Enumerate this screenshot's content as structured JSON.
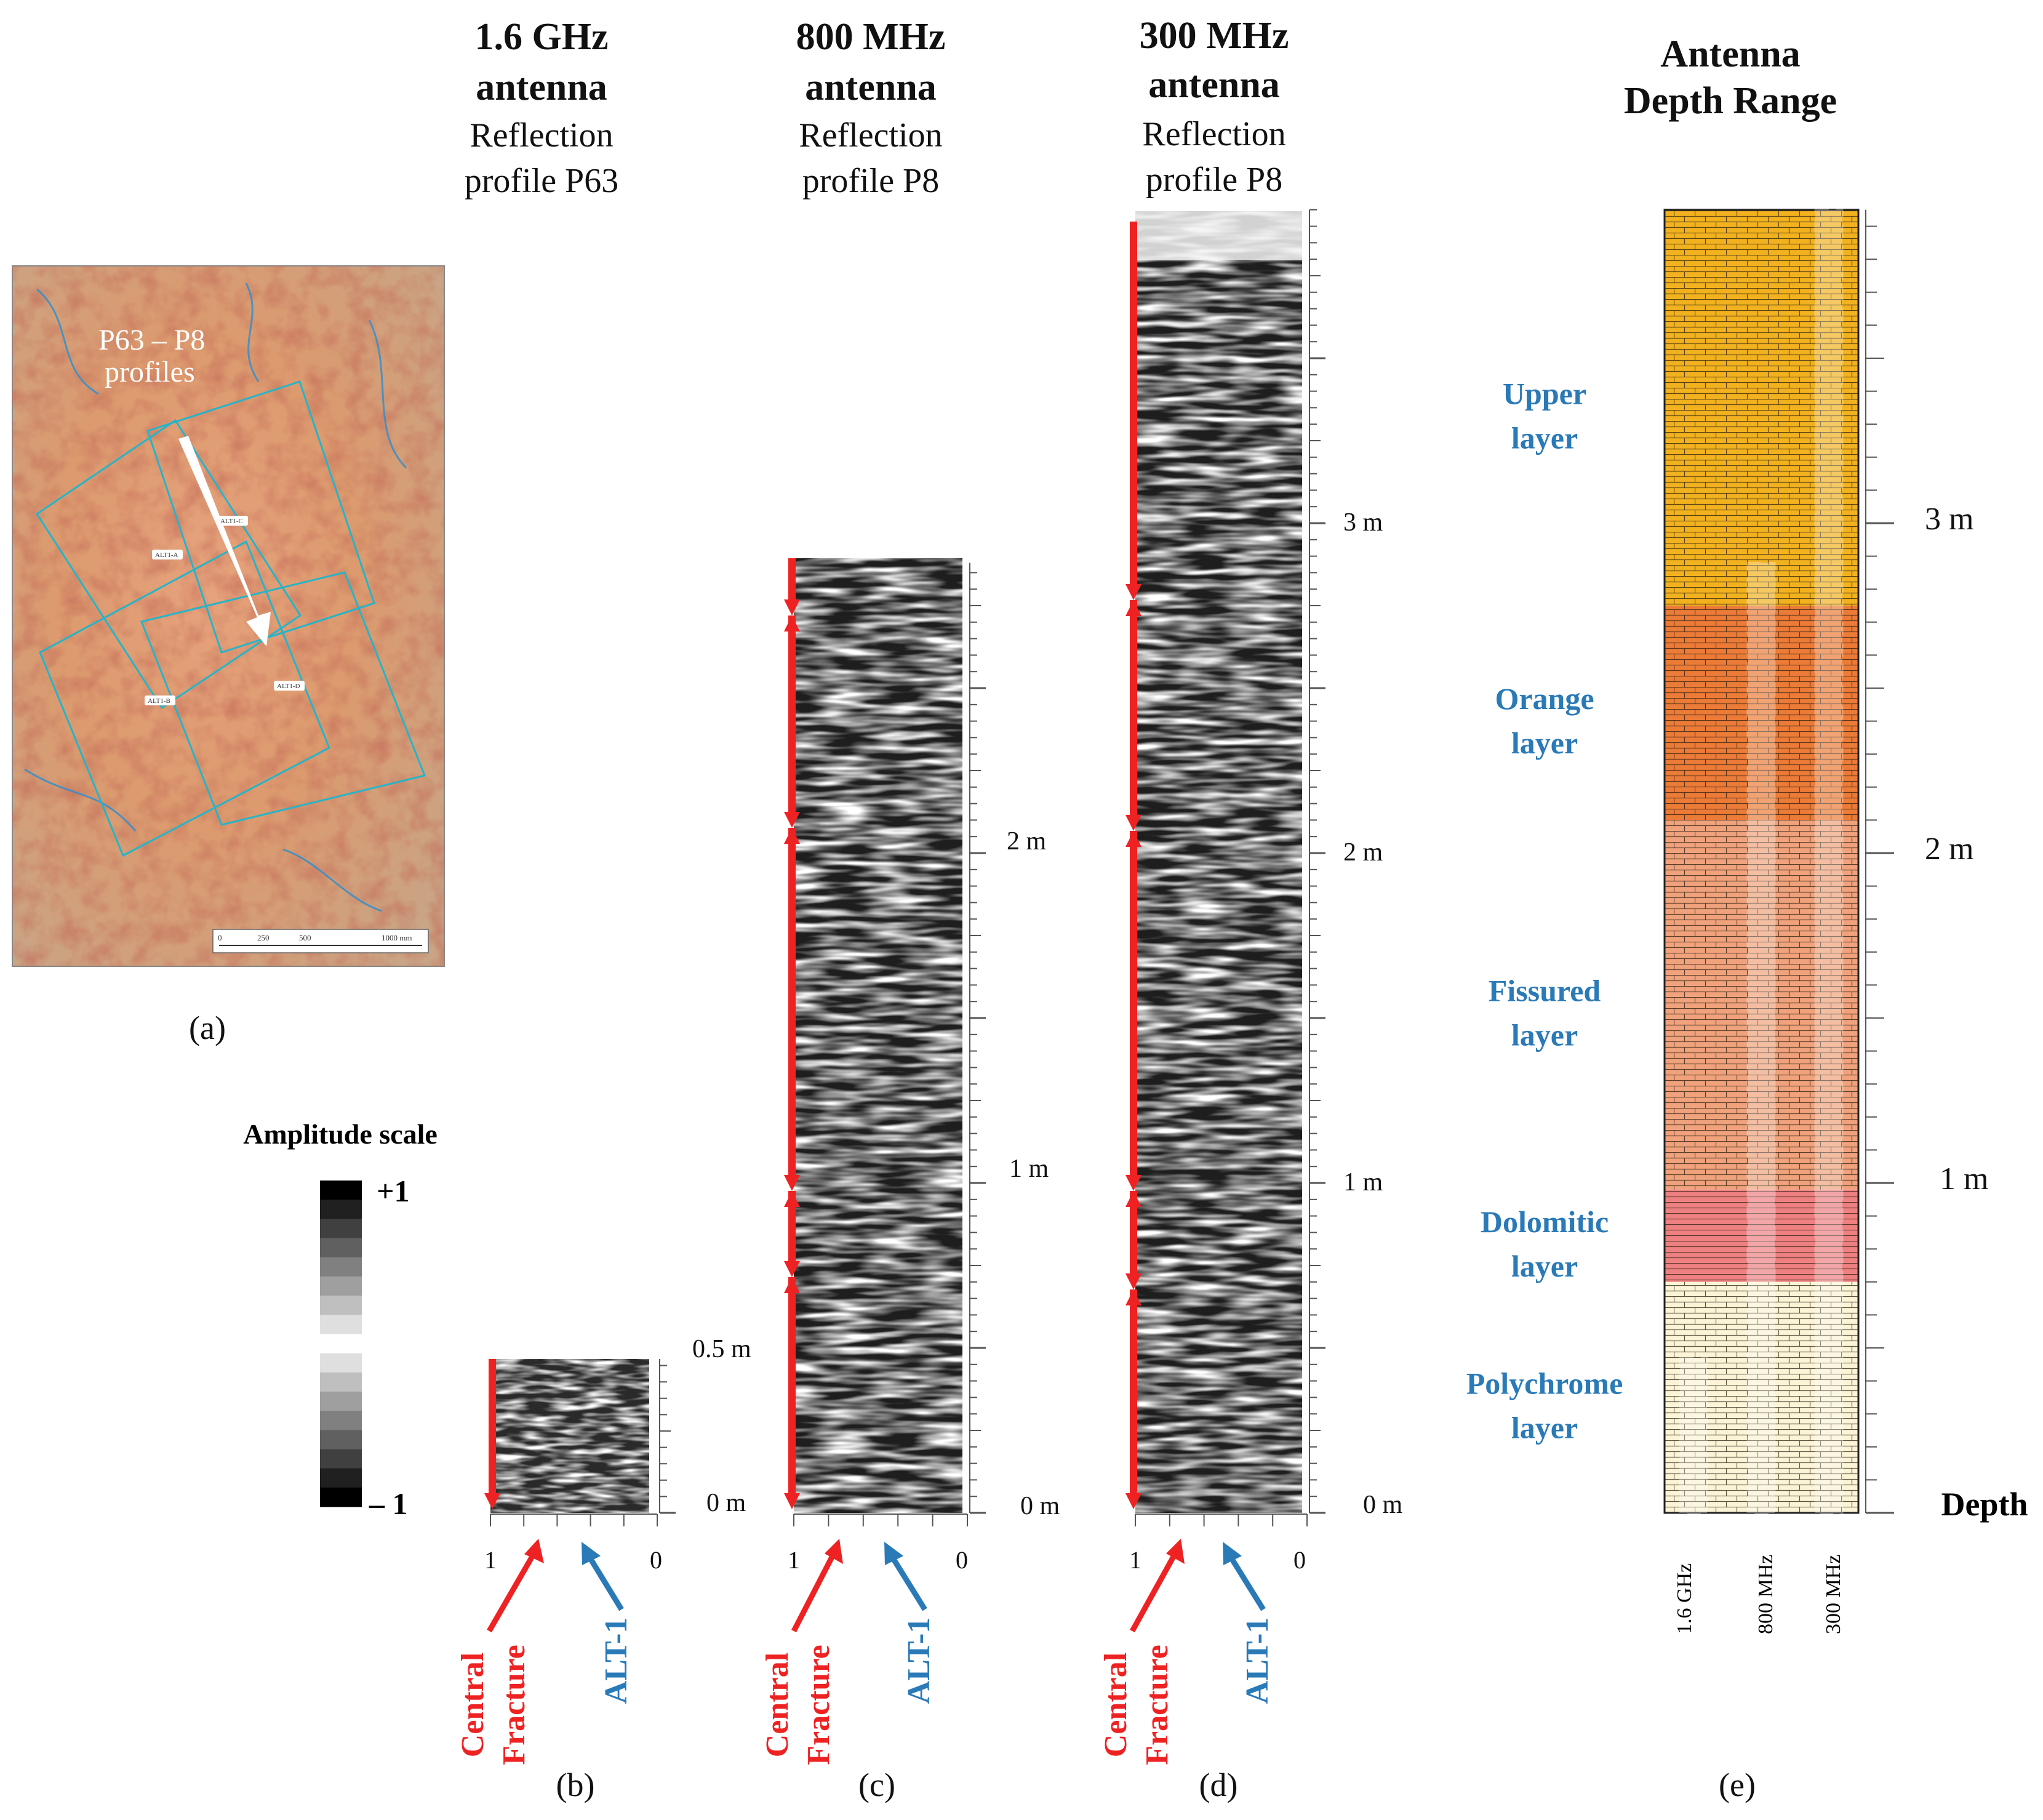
{
  "map": {
    "profile_label_line1": "P63 – P8",
    "profile_label_line2": "profiles",
    "zones": [
      "ALT1-A",
      "ALT1-B",
      "ALT1-C",
      "ALT1-D"
    ],
    "scale_labels": [
      "0",
      "250",
      "500",
      "1000 mm"
    ],
    "panel_label": "(a)"
  },
  "amplitude_scale": {
    "title": "Amplitude scale",
    "max_label": "+1",
    "min_label": "– 1"
  },
  "profiles": [
    {
      "id": "b",
      "title_line1": "1.6 GHz",
      "title_line2": "antenna",
      "sub_line1": "Reflection",
      "sub_line2": "profile P63",
      "depth_labels": [
        "0.5 m",
        "0 m"
      ],
      "x_labels": [
        "1",
        "0"
      ],
      "panel_label": "(b)",
      "max_depth_m": 0.47
    },
    {
      "id": "c",
      "title_line1": "800 MHz",
      "title_line2": "antenna",
      "sub_line1": "Reflection",
      "sub_line2": "profile P8",
      "depth_labels": [
        "2 m",
        "1 m",
        "0 m"
      ],
      "x_labels": [
        "1",
        "0"
      ],
      "panel_label": "(c)",
      "max_depth_m": 2.88
    },
    {
      "id": "d",
      "title_line1": "300 MHz",
      "title_line2": "antenna",
      "sub_line1": "Reflection",
      "sub_line2": "profile P8",
      "depth_labels": [
        "3 m",
        "2 m",
        "1 m",
        "0 m"
      ],
      "x_labels": [
        "1",
        "0"
      ],
      "panel_label": "(d)",
      "max_depth_m": 3.95
    }
  ],
  "arrows": {
    "fracture_line1": "Central",
    "fracture_line2": "Fracture",
    "alt": "ALT-1",
    "fracture_color": "#ee2222",
    "alt_color": "#2a7ab8"
  },
  "depth_range": {
    "title_line1": "Antenna",
    "title_line2": "Depth Range",
    "depth_labels": [
      "3 m",
      "2 m",
      "1 m"
    ],
    "depth_axis_label": "Depth",
    "antennas": [
      "1.6 GHz",
      "800 MHz",
      "300 MHz"
    ],
    "antenna_reach_m": [
      0.47,
      2.88,
      3.95
    ],
    "panel_label": "(e)",
    "layers": [
      {
        "name_line1": "Upper",
        "name_line2": "layer",
        "top_m": 3.95,
        "bottom_m": 2.75,
        "color": "#f2b21f"
      },
      {
        "name_line1": "Orange",
        "name_line2": "layer",
        "top_m": 2.75,
        "bottom_m": 2.1,
        "color": "#ec7b37"
      },
      {
        "name_line1": "Fissured",
        "name_line2": "layer",
        "top_m": 2.1,
        "bottom_m": 0.98,
        "color": "#f0a27c"
      },
      {
        "name_line1": "Dolomitic",
        "name_line2": "layer",
        "top_m": 0.98,
        "bottom_m": 0.7,
        "color": "#ee8081"
      },
      {
        "name_line1": "Polychrome",
        "name_line2": "layer",
        "top_m": 0.7,
        "bottom_m": 0.0,
        "color": "#fbf4d6"
      }
    ]
  }
}
